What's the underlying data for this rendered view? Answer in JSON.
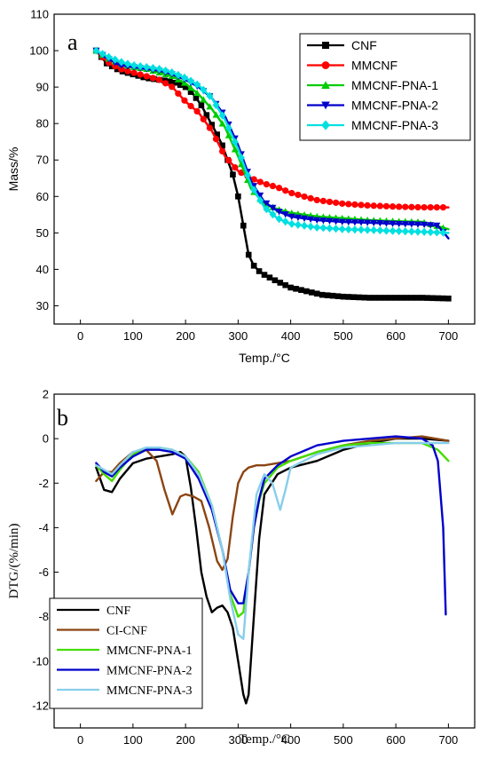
{
  "chart_data": [
    {
      "type": "line",
      "panel_label": "a",
      "xlabel": "Temp./°C",
      "ylabel": "Mass/%",
      "xlim": [
        -50,
        750
      ],
      "ylim": [
        25,
        110
      ],
      "xticks": [
        0,
        100,
        200,
        300,
        400,
        500,
        600,
        700
      ],
      "yticks": [
        30,
        40,
        50,
        60,
        70,
        80,
        90,
        100,
        110
      ],
      "legend_position": "top-right",
      "series": [
        {
          "name": "CNF",
          "color": "#000000",
          "marker": "square",
          "x": [
            30,
            50,
            75,
            100,
            125,
            150,
            175,
            200,
            215,
            230,
            245,
            260,
            270,
            280,
            290,
            300,
            310,
            320,
            330,
            340,
            350,
            370,
            400,
            430,
            460,
            500,
            550,
            600,
            650,
            700
          ],
          "y": [
            100,
            96.5,
            94.5,
            93.5,
            92.5,
            92,
            91.5,
            90,
            88,
            85,
            81,
            77,
            74,
            70,
            66,
            60,
            52,
            44,
            41,
            39.5,
            38.5,
            37,
            35,
            34,
            33,
            32.5,
            32.2,
            32.2,
            32.2,
            32
          ]
        },
        {
          "name": "MMCNF",
          "color": "#ff0000",
          "marker": "circle",
          "x": [
            30,
            50,
            75,
            100,
            125,
            150,
            175,
            200,
            225,
            250,
            275,
            300,
            325,
            350,
            375,
            400,
            450,
            500,
            550,
            600,
            650,
            700
          ],
          "y": [
            100,
            97,
            95,
            94,
            93,
            92,
            90,
            86,
            83,
            78,
            71,
            67,
            65,
            63.5,
            62.5,
            61,
            59,
            58,
            57.5,
            57.2,
            57,
            57
          ]
        },
        {
          "name": "MMCNF-PNA-1",
          "color": "#00cc00",
          "marker": "triangle-up",
          "x": [
            30,
            50,
            75,
            100,
            125,
            150,
            175,
            200,
            225,
            250,
            275,
            300,
            325,
            350,
            375,
            400,
            450,
            500,
            550,
            600,
            650,
            700
          ],
          "y": [
            100,
            98,
            96.5,
            95.5,
            95,
            94,
            93,
            91,
            88,
            84,
            79,
            71,
            62,
            58,
            56.5,
            55.5,
            54.5,
            54,
            53.5,
            53.2,
            53,
            51
          ]
        },
        {
          "name": "MMCNF-PNA-2",
          "color": "#0000cc",
          "marker": "triangle-down",
          "x": [
            30,
            50,
            75,
            100,
            125,
            150,
            175,
            200,
            225,
            250,
            275,
            300,
            325,
            350,
            375,
            400,
            450,
            500,
            550,
            600,
            650,
            680,
            700
          ],
          "y": [
            100,
            98,
            96,
            95.5,
            95,
            94.5,
            93.5,
            92,
            90,
            87,
            82,
            74,
            64,
            58.5,
            56,
            54.5,
            53.5,
            53,
            52.8,
            52.5,
            52.3,
            52,
            48.5
          ]
        },
        {
          "name": "MMCNF-PNA-3",
          "color": "#00e0e0",
          "marker": "diamond",
          "x": [
            30,
            50,
            75,
            100,
            125,
            150,
            175,
            200,
            225,
            250,
            275,
            300,
            325,
            350,
            375,
            400,
            450,
            500,
            550,
            600,
            650,
            700
          ],
          "y": [
            100,
            98.5,
            97,
            96,
            95.5,
            95,
            94,
            92.5,
            90.5,
            87,
            81,
            73,
            63,
            57,
            54,
            52.5,
            51.5,
            51,
            50.8,
            50.5,
            50.3,
            50
          ]
        }
      ]
    },
    {
      "type": "line",
      "panel_label": "b",
      "xlabel": "Temp./°C",
      "ylabel": "DTG/(%/min)",
      "xlim": [
        -50,
        750
      ],
      "ylim": [
        -13,
        2
      ],
      "xticks": [
        0,
        100,
        200,
        300,
        400,
        500,
        600,
        700
      ],
      "yticks": [
        2,
        0,
        -2,
        -4,
        -6,
        -8,
        -10,
        -12
      ],
      "legend_position": "bottom-left",
      "series": [
        {
          "name": "CNF",
          "color": "#000000",
          "x": [
            30,
            45,
            60,
            75,
            100,
            125,
            150,
            175,
            190,
            200,
            210,
            220,
            230,
            240,
            250,
            260,
            270,
            280,
            290,
            300,
            310,
            315,
            320,
            330,
            340,
            350,
            375,
            400,
            450,
            500,
            550,
            600,
            650,
            700
          ],
          "y": [
            -1.3,
            -2.3,
            -2.4,
            -1.8,
            -1.1,
            -0.9,
            -0.8,
            -0.7,
            -0.6,
            -0.8,
            -2.2,
            -4,
            -6,
            -7.1,
            -7.8,
            -7.6,
            -7.5,
            -7.8,
            -8.5,
            -10,
            -11.5,
            -11.9,
            -11.5,
            -8,
            -4.5,
            -2.5,
            -1.6,
            -1.3,
            -1,
            -0.5,
            -0.2,
            0,
            0,
            -0.1
          ]
        },
        {
          "name": "CI-CNF",
          "color": "#8b4513",
          "x": [
            30,
            45,
            60,
            75,
            100,
            125,
            145,
            160,
            175,
            190,
            200,
            215,
            230,
            245,
            260,
            270,
            280,
            290,
            300,
            310,
            320,
            335,
            350,
            375,
            400,
            450,
            500,
            550,
            600,
            650,
            700
          ],
          "y": [
            -1.9,
            -1.5,
            -1.5,
            -1.1,
            -0.6,
            -0.5,
            -1,
            -2.3,
            -3.4,
            -2.6,
            -2.5,
            -2.6,
            -2.8,
            -4,
            -5.5,
            -5.9,
            -5.4,
            -3.5,
            -2,
            -1.5,
            -1.3,
            -1.2,
            -1.2,
            -1.1,
            -1,
            -0.6,
            -0.3,
            -0.1,
            0,
            0.1,
            -0.1
          ]
        },
        {
          "name": "MMCNF-PNA-1",
          "color": "#44dd00",
          "x": [
            30,
            45,
            60,
            75,
            100,
            125,
            150,
            175,
            200,
            225,
            250,
            270,
            285,
            300,
            310,
            320,
            330,
            340,
            350,
            375,
            400,
            450,
            500,
            550,
            600,
            650,
            680,
            700
          ],
          "y": [
            -1.2,
            -1.6,
            -1.9,
            -1.4,
            -0.7,
            -0.5,
            -0.4,
            -0.5,
            -0.8,
            -1.5,
            -3,
            -5,
            -7,
            -8,
            -7.8,
            -6,
            -4,
            -2.8,
            -2,
            -1.3,
            -1,
            -0.6,
            -0.3,
            -0.2,
            -0.2,
            -0.2,
            -0.5,
            -1
          ]
        },
        {
          "name": "MMCNF-PNA-2",
          "color": "#0000cc",
          "x": [
            30,
            45,
            60,
            75,
            100,
            125,
            150,
            175,
            200,
            225,
            250,
            270,
            285,
            300,
            310,
            320,
            330,
            340,
            350,
            375,
            400,
            450,
            500,
            550,
            600,
            650,
            670,
            680,
            690,
            695
          ],
          "y": [
            -1.1,
            -1.5,
            -1.7,
            -1.3,
            -0.8,
            -0.5,
            -0.5,
            -0.6,
            -0.9,
            -1.8,
            -3.2,
            -5,
            -6.8,
            -7.4,
            -7.4,
            -6,
            -4,
            -2.7,
            -1.8,
            -1.2,
            -0.8,
            -0.3,
            -0.1,
            0,
            0.1,
            0,
            -0.3,
            -1,
            -4,
            -7.9
          ]
        },
        {
          "name": "MMCNF-PNA-3",
          "color": "#87ceeb",
          "x": [
            30,
            45,
            60,
            75,
            100,
            125,
            150,
            175,
            200,
            225,
            250,
            270,
            285,
            300,
            310,
            320,
            335,
            350,
            365,
            380,
            390,
            400,
            450,
            500,
            550,
            600,
            650,
            700
          ],
          "y": [
            -1.2,
            -1.4,
            -1.6,
            -1.2,
            -0.6,
            -0.4,
            -0.4,
            -0.5,
            -0.8,
            -1.6,
            -3,
            -5,
            -7.2,
            -8.8,
            -9,
            -6,
            -2.5,
            -1.6,
            -2,
            -3.2,
            -2.3,
            -1.3,
            -0.7,
            -0.4,
            -0.3,
            -0.2,
            -0.2,
            -0.2
          ]
        }
      ]
    }
  ]
}
